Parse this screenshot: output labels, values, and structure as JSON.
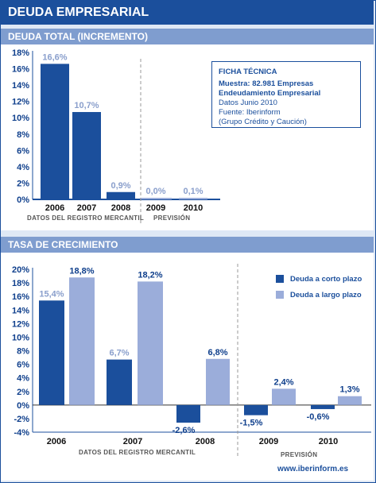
{
  "title": "DEUDA EMPRESARIAL",
  "footer": "www.iberinform.es",
  "colors": {
    "dark": "#1b4f9c",
    "light": "#9badda",
    "header": "#1b4f9c",
    "section": "#7f9dcf"
  },
  "ficha": {
    "heading": "FICHA TÉCNICA",
    "line1": "Muestra: 82.981 Empresas",
    "line2": "Endeudamiento Empresarial",
    "line3": "Datos Junio 2010",
    "line4": "Fuente: Iberinform",
    "line5": "(Grupo Crédito y Caución)"
  },
  "chart_data": [
    {
      "type": "bar",
      "title": "DEUDA TOTAL (INCREMENTO)",
      "categories": [
        "2006",
        "2007",
        "2008",
        "2009",
        "2010"
      ],
      "values": [
        16.6,
        10.7,
        0.9,
        0.0,
        0.1
      ],
      "data_labels": [
        "16,6%",
        "10,7%",
        "0,9%",
        "0,0%",
        "0,1%"
      ],
      "yticks": [
        "18%",
        "16%",
        "14%",
        "12%",
        "10%",
        "8%",
        "6%",
        "4%",
        "2%",
        "0%"
      ],
      "ylim": [
        0,
        18
      ],
      "regions": [
        "DATOS DEL REGISTRO MERCANTIL",
        "PREVISIÓN"
      ],
      "grid": false
    },
    {
      "type": "bar",
      "title": "TASA DE CRECIMIENTO",
      "categories": [
        "2006",
        "2007",
        "2008",
        "2009",
        "2010"
      ],
      "series": [
        {
          "name": "Deuda a corto plazo",
          "values": [
            15.4,
            6.7,
            -2.6,
            -1.5,
            -0.6
          ],
          "labels": [
            "15,4%",
            "6,7%",
            "-2,6%",
            "-1,5%",
            "-0,6%"
          ]
        },
        {
          "name": "Deuda a largo plazo",
          "values": [
            18.8,
            18.2,
            6.8,
            2.4,
            1.3
          ],
          "labels": [
            "18,8%",
            "18,2%",
            "6,8%",
            "2,4%",
            "1,3%"
          ]
        }
      ],
      "yticks": [
        "20%",
        "18%",
        "16%",
        "14%",
        "12%",
        "10%",
        "8%",
        "6%",
        "4%",
        "2%",
        "0%",
        "-2%",
        "-4%"
      ],
      "ylim": [
        -4,
        20
      ],
      "regions": [
        "DATOS DEL REGISTRO MERCANTIL",
        "PREVISIÓN"
      ],
      "legend": "top-right",
      "grid": false
    }
  ]
}
